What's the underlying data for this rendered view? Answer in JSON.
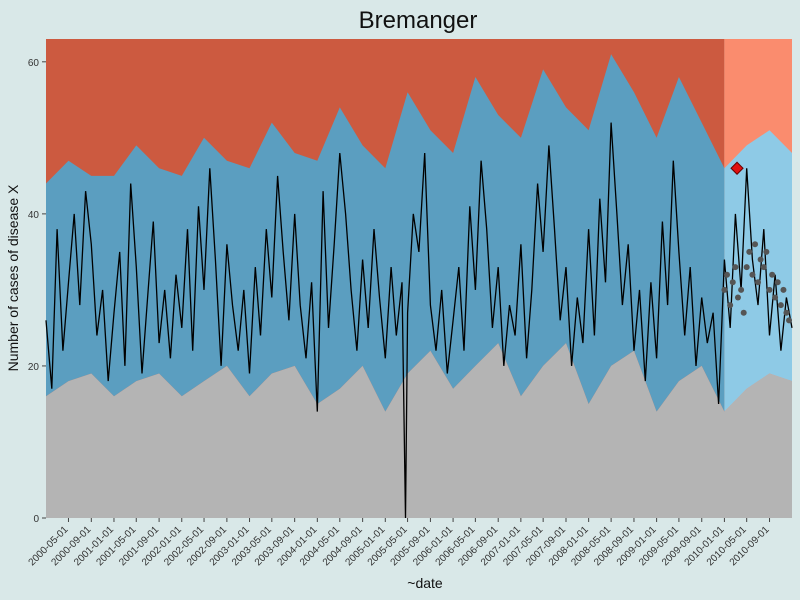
{
  "chart_data": {
    "type": "area",
    "title": "Bremanger",
    "xlabel": "~date",
    "ylabel": "Number of cases of disease X",
    "ylim": [
      0,
      63
    ],
    "xlim": [
      "2000-01-01",
      "2010-12-31"
    ],
    "y_ticks": [
      0,
      20,
      40,
      60
    ],
    "x_tick_labels": [
      "2000-05-01",
      "2000-09-01",
      "2001-01-01",
      "2001-05-01",
      "2001-09-01",
      "2002-01-01",
      "2002-05-01",
      "2002-09-01",
      "2003-01-01",
      "2003-05-01",
      "2003-09-01",
      "2004-01-01",
      "2004-05-01",
      "2004-09-01",
      "2005-01-01",
      "2005-05-01",
      "2005-09-01",
      "2006-01-01",
      "2006-05-01",
      "2006-09-01",
      "2007-01-01",
      "2007-05-01",
      "2007-09-01",
      "2008-01-01",
      "2008-05-01",
      "2008-09-01",
      "2009-01-01",
      "2009-05-01",
      "2009-09-01",
      "2010-01-01",
      "2010-05-01",
      "2010-09-01"
    ],
    "grid": false,
    "legend": "none",
    "band_boundaries": {
      "x": [
        "2000-01-01",
        "2000-05-01",
        "2000-09-01",
        "2001-01-01",
        "2001-05-01",
        "2001-09-01",
        "2002-01-01",
        "2002-05-01",
        "2002-09-01",
        "2003-01-01",
        "2003-05-01",
        "2003-09-01",
        "2004-01-01",
        "2004-05-01",
        "2004-09-01",
        "2005-01-01",
        "2005-05-01",
        "2005-09-01",
        "2006-01-01",
        "2006-05-01",
        "2006-09-01",
        "2007-01-01",
        "2007-05-01",
        "2007-09-01",
        "2008-01-01",
        "2008-05-01",
        "2008-09-01",
        "2009-01-01",
        "2009-05-01",
        "2009-09-01",
        "2010-01-01",
        "2010-05-01",
        "2010-09-01",
        "2010-12-31"
      ],
      "lower": [
        16,
        18,
        19,
        16,
        18,
        19,
        16,
        18,
        20,
        16,
        19,
        20,
        15,
        17,
        20,
        14,
        19,
        22,
        17,
        20,
        23,
        16,
        20,
        23,
        15,
        20,
        22,
        14,
        18,
        20,
        14,
        17,
        19,
        18
      ],
      "upper": [
        44,
        47,
        45,
        45,
        49,
        46,
        45,
        50,
        47,
        46,
        52,
        48,
        47,
        54,
        49,
        46,
        56,
        51,
        48,
        58,
        53,
        50,
        59,
        54,
        51,
        61,
        56,
        50,
        58,
        52,
        46,
        49,
        51,
        48
      ]
    },
    "forecast_start": "2010-01-01",
    "series": [
      {
        "x": [
          "2000-01-01",
          "2000-02-01",
          "2000-03-01",
          "2000-04-01",
          "2000-05-01",
          "2000-06-01",
          "2000-07-01",
          "2000-08-01",
          "2000-09-01",
          "2000-10-01",
          "2000-11-01",
          "2000-12-01",
          "2001-01-01",
          "2001-02-01",
          "2001-03-01",
          "2001-04-01",
          "2001-05-01",
          "2001-06-01",
          "2001-07-01",
          "2001-08-01",
          "2001-09-01",
          "2001-10-01",
          "2001-11-01",
          "2001-12-01",
          "2002-01-01",
          "2002-02-01",
          "2002-03-01",
          "2002-04-01",
          "2002-05-01",
          "2002-06-01",
          "2002-07-01",
          "2002-08-01",
          "2002-09-01",
          "2002-10-01",
          "2002-11-01",
          "2002-12-01",
          "2003-01-01",
          "2003-02-01",
          "2003-03-01",
          "2003-04-01",
          "2003-05-01",
          "2003-06-01",
          "2003-07-01",
          "2003-08-01",
          "2003-09-01",
          "2003-10-01",
          "2003-11-01",
          "2003-12-01",
          "2004-01-01",
          "2004-02-01",
          "2004-03-01",
          "2004-04-01",
          "2004-05-01",
          "2004-06-01",
          "2004-07-01",
          "2004-08-01",
          "2004-09-01",
          "2004-10-01",
          "2004-11-01",
          "2004-12-01",
          "2005-01-01",
          "2005-02-01",
          "2005-03-01",
          "2005-04-01",
          "2005-04-20",
          "2005-05-01",
          "2005-06-01",
          "2005-07-01",
          "2005-08-01",
          "2005-09-01",
          "2005-10-01",
          "2005-11-01",
          "2005-12-01",
          "2006-01-01",
          "2006-02-01",
          "2006-03-01",
          "2006-04-01",
          "2006-05-01",
          "2006-06-01",
          "2006-07-01",
          "2006-08-01",
          "2006-09-01",
          "2006-10-01",
          "2006-11-01",
          "2006-12-01",
          "2007-01-01",
          "2007-02-01",
          "2007-03-01",
          "2007-04-01",
          "2007-05-01",
          "2007-06-01",
          "2007-07-01",
          "2007-08-01",
          "2007-09-01",
          "2007-10-01",
          "2007-11-01",
          "2007-12-01",
          "2008-01-01",
          "2008-02-01",
          "2008-03-01",
          "2008-04-01",
          "2008-05-01",
          "2008-06-01",
          "2008-07-01",
          "2008-08-01",
          "2008-09-01",
          "2008-10-01",
          "2008-11-01",
          "2008-12-01",
          "2009-01-01",
          "2009-02-01",
          "2009-03-01",
          "2009-04-01",
          "2009-05-01",
          "2009-06-01",
          "2009-07-01",
          "2009-08-01",
          "2009-09-01",
          "2009-10-01",
          "2009-11-01",
          "2009-12-01",
          "2010-01-01",
          "2010-02-01",
          "2010-03-01",
          "2010-04-01",
          "2010-05-01",
          "2010-06-01",
          "2010-07-01",
          "2010-08-01",
          "2010-09-01",
          "2010-10-01",
          "2010-11-01",
          "2010-12-01",
          "2010-12-31"
        ],
        "y": [
          26,
          17,
          38,
          22,
          31,
          40,
          28,
          43,
          36,
          24,
          30,
          18,
          27,
          35,
          20,
          44,
          33,
          19,
          29,
          39,
          23,
          30,
          21,
          32,
          25,
          38,
          22,
          41,
          30,
          46,
          34,
          20,
          36,
          28,
          22,
          30,
          19,
          33,
          24,
          38,
          29,
          45,
          35,
          26,
          40,
          28,
          21,
          31,
          14,
          43,
          25,
          36,
          48,
          40,
          30,
          22,
          34,
          25,
          38,
          29,
          21,
          33,
          24,
          31,
          0,
          27,
          40,
          35,
          48,
          28,
          22,
          30,
          19,
          26,
          33,
          22,
          41,
          30,
          47,
          38,
          25,
          33,
          20,
          28,
          24,
          36,
          21,
          30,
          44,
          35,
          49,
          38,
          26,
          33,
          20,
          29,
          23,
          38,
          24,
          42,
          31,
          52,
          40,
          28,
          36,
          22,
          30,
          18,
          31,
          21,
          39,
          28,
          47,
          35,
          24,
          33,
          20,
          29,
          23,
          27,
          15,
          34,
          25,
          40,
          30,
          46,
          34,
          28,
          38,
          24,
          32,
          22,
          29,
          25
        ]
      }
    ],
    "points": {
      "x": [
        "2010-01-01",
        "2010-01-15",
        "2010-02-01",
        "2010-02-15",
        "2010-03-01",
        "2010-03-15",
        "2010-04-01",
        "2010-04-15",
        "2010-05-01",
        "2010-05-15",
        "2010-06-01",
        "2010-06-15",
        "2010-07-01",
        "2010-07-15",
        "2010-08-01",
        "2010-08-15",
        "2010-09-01",
        "2010-09-15",
        "2010-10-01",
        "2010-10-15",
        "2010-11-01",
        "2010-11-15",
        "2010-12-01",
        "2010-12-15"
      ],
      "y": [
        30,
        32,
        28,
        31,
        33,
        29,
        30,
        27,
        33,
        35,
        32,
        36,
        31,
        34,
        33,
        35,
        30,
        32,
        29,
        31,
        28,
        30,
        27,
        26
      ]
    },
    "alarm": {
      "x": "2010-03-10",
      "y": 46
    },
    "colors": {
      "background": "#d9e8e8",
      "upper_region": "#cc5a40",
      "upper_region_forecast": "#fa8c6e",
      "band": "#5b9ec0",
      "band_forecast": "#8ecae6",
      "lower_region": "#b4b4b4",
      "line": "#000000",
      "points": "#555555",
      "alarm": "#e01010"
    }
  }
}
